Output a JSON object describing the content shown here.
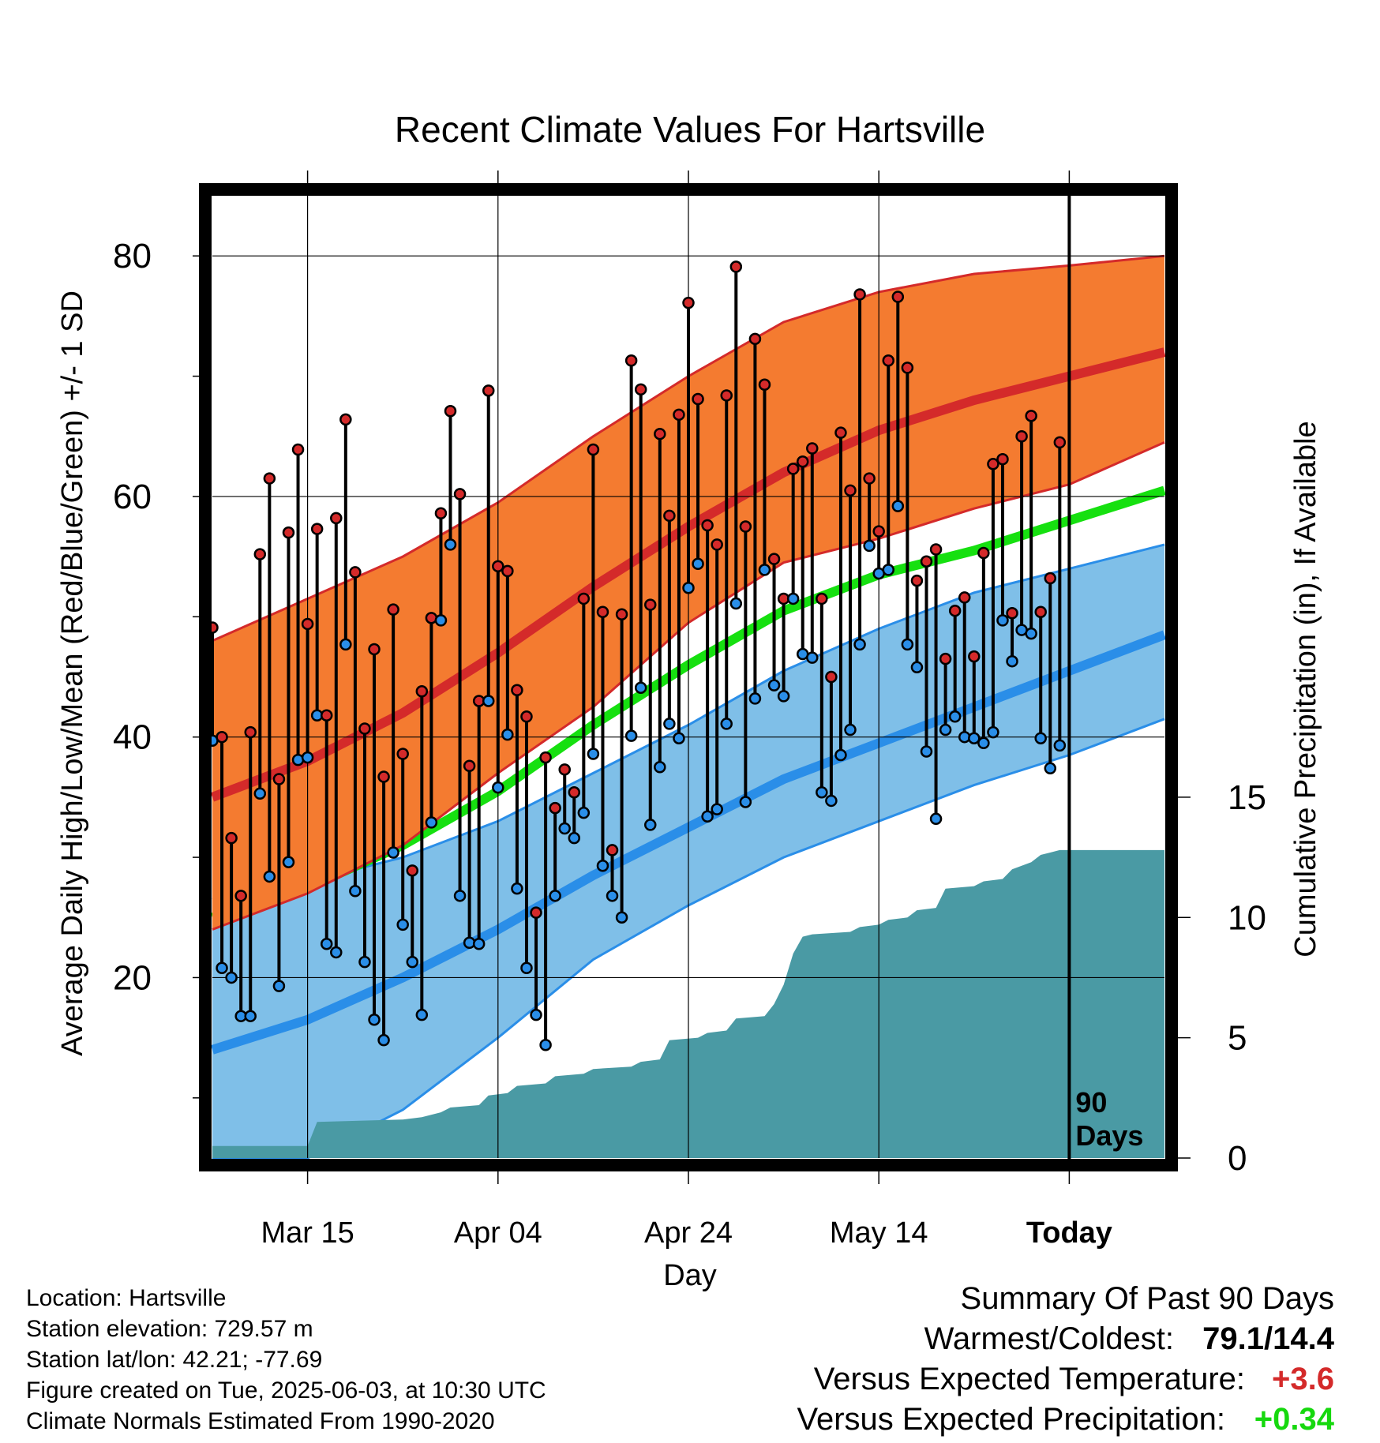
{
  "title": "Recent Climate Values For Hartsville",
  "info": {
    "location": "Location: Hartsville",
    "elevation": "Station elevation: 729.57 m",
    "latlon": "Station lat/lon: 42.21; -77.69",
    "created": "Figure created on Tue, 2025-06-03, at 10:30 UTC",
    "normals": "Climate Normals Estimated From 1990-2020"
  },
  "summary": {
    "heading": "Summary Of Past 90 Days",
    "warm_label": "Warmest/Coldest:",
    "warm_value": "79.1/14.4",
    "temp_label": "Versus Expected Temperature:",
    "temp_value": "+3.6",
    "precip_label": "Versus Expected Precipitation:",
    "precip_value": "+0.34"
  },
  "chart_data": {
    "type": "line",
    "title": "Recent Climate Values For Hartsville",
    "xlabel": "Day",
    "ylabel_left": "Average Daily High/Low/Mean (Red/Blue/Green) +/- 1 SD",
    "ylabel_right": "Cumulative Precipitation (in), If Available",
    "x_ticks": [
      "Mar 15",
      "Apr 04",
      "Apr 24",
      "May 14",
      "Today"
    ],
    "x_tick_days": [
      10,
      30,
      50,
      70,
      90
    ],
    "xlim": [
      0,
      100
    ],
    "ylim_left": [
      5,
      85
    ],
    "yticks_left": [
      20,
      40,
      60,
      80
    ],
    "ylim_right": [
      0,
      40
    ],
    "yticks_right": [
      0,
      5,
      10,
      15
    ],
    "today_marker_label": [
      "90",
      "Days"
    ],
    "grid": true,
    "colors": {
      "high_band": "#f47b30",
      "high_line": "#d42a2a",
      "low_band": "#7fbfe8",
      "low_line": "#2a8ee8",
      "mean_line": "#16e010",
      "precip": "#4a9aa4",
      "high_dot": "#d42a2a",
      "low_dot": "#2a8ee8"
    },
    "normals": {
      "days": [
        0,
        10,
        20,
        30,
        40,
        50,
        60,
        70,
        80,
        90,
        100
      ],
      "high_upper": [
        48,
        51.5,
        55,
        59.5,
        65,
        70,
        74.5,
        77,
        78.5,
        79.2,
        80
      ],
      "high_mean": [
        35,
        38,
        42,
        47,
        52.5,
        57.5,
        62,
        65.5,
        68,
        70,
        72
      ],
      "high_lower": [
        24,
        27,
        31,
        37,
        42.5,
        49.5,
        54.5,
        56.5,
        59,
        61,
        64.5
      ],
      "low_upper": [
        26.5,
        28,
        30,
        33,
        37,
        41,
        45.5,
        49,
        52,
        54,
        56
      ],
      "low_mean": [
        14,
        16.5,
        20,
        24,
        28.5,
        32.5,
        36.5,
        39.5,
        42.5,
        45.5,
        48.5
      ],
      "low_lower": [
        5,
        5,
        9,
        15,
        21.5,
        26,
        30,
        33,
        36,
        38.5,
        41.5
      ],
      "mean": [
        25,
        27.5,
        31,
        35.5,
        41,
        46,
        50.5,
        53.5,
        55.5,
        58,
        60.5
      ]
    },
    "daily": {
      "highs": [
        49.1,
        40,
        31.6,
        26.8,
        40.4,
        55.2,
        61.5,
        36.5,
        57,
        63.9,
        49.4,
        57.3,
        41.8,
        58.2,
        66.4,
        53.7,
        40.7,
        47.3,
        36.7,
        50.6,
        38.6,
        28.9,
        43.8,
        49.9,
        58.6,
        67.1,
        60.2,
        37.6,
        43,
        68.8,
        54.2,
        53.8,
        43.9,
        41.7,
        25.4,
        38.3,
        34.1,
        37.3,
        35.4,
        51.5,
        63.9,
        50.4,
        30.6,
        50.2,
        71.3,
        68.9,
        51,
        65.2,
        58.4,
        66.8,
        76.1,
        68.1,
        57.6,
        56,
        68.4,
        79.1,
        57.5,
        73.1,
        69.3,
        54.8,
        51.5,
        62.3,
        62.9,
        64,
        51.5,
        45,
        65.3,
        60.5,
        76.8,
        61.5,
        57.1,
        71.3,
        76.6,
        70.7,
        53,
        54.6,
        55.6,
        46.5,
        50.5,
        51.6,
        46.7,
        55.3,
        62.7,
        63.1,
        50.3,
        65,
        66.7,
        50.4,
        53.2,
        64.5
      ],
      "lows": [
        39.7,
        20.8,
        20,
        16.8,
        16.8,
        35.3,
        28.4,
        19.3,
        29.6,
        38.1,
        38.3,
        41.8,
        22.8,
        22.1,
        47.7,
        27.2,
        21.3,
        16.5,
        14.8,
        30.4,
        24.4,
        21.3,
        16.9,
        32.9,
        49.7,
        56,
        26.8,
        22.9,
        22.8,
        43,
        35.8,
        40.2,
        27.4,
        20.8,
        16.9,
        14.4,
        26.8,
        32.4,
        31.6,
        33.7,
        38.6,
        29.3,
        26.8,
        25,
        40.1,
        44.1,
        32.7,
        37.5,
        41.1,
        39.9,
        52.4,
        54.4,
        33.4,
        34,
        41.1,
        51.1,
        34.6,
        43.2,
        53.9,
        44.3,
        43.4,
        51.5,
        46.9,
        46.6,
        35.4,
        34.7,
        38.5,
        40.6,
        47.7,
        55.9,
        53.6,
        53.9,
        59.2,
        47.7,
        45.8,
        38.8,
        33.2,
        40.6,
        41.7,
        40,
        39.9,
        39.5,
        40.4,
        49.7,
        46.3,
        48.9,
        48.6,
        39.9,
        37.4,
        39.3
      ]
    },
    "precip_cumulative": {
      "days": [
        0,
        10,
        11,
        20,
        22,
        24,
        25,
        28,
        29,
        31,
        32,
        35,
        36,
        39,
        40,
        44,
        45,
        47,
        48,
        51,
        52,
        54,
        55,
        58,
        59,
        60,
        61,
        62,
        63,
        67,
        68,
        70,
        71,
        73,
        74,
        76,
        77,
        80,
        81,
        83,
        84,
        86,
        87,
        88,
        89,
        90,
        100
      ],
      "values": [
        0.5,
        0.5,
        1.5,
        1.6,
        1.7,
        1.9,
        2.1,
        2.2,
        2.6,
        2.7,
        3.0,
        3.1,
        3.4,
        3.5,
        3.7,
        3.8,
        4.0,
        4.1,
        4.9,
        5.0,
        5.2,
        5.3,
        5.8,
        5.9,
        6.4,
        7.2,
        8.5,
        9.2,
        9.3,
        9.4,
        9.6,
        9.7,
        9.9,
        10.0,
        10.3,
        10.4,
        11.2,
        11.3,
        11.5,
        11.6,
        12.0,
        12.3,
        12.6,
        12.7,
        12.8,
        12.8,
        12.8
      ]
    }
  }
}
